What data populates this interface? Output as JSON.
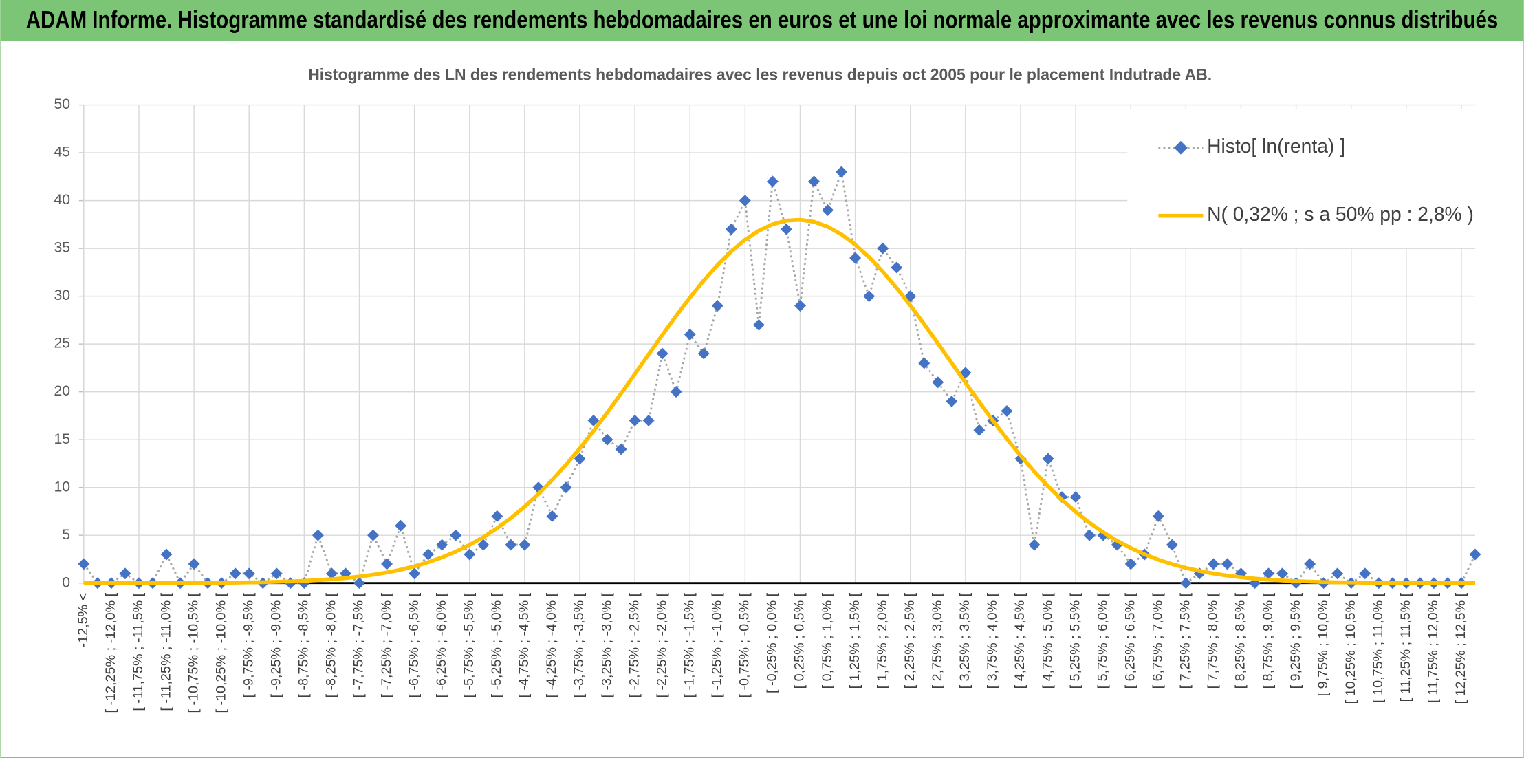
{
  "header": {
    "title": "ADAM Informe. Histogramme standardisé des rendements hebdomadaires en euros et une loi normale approximante avec les revenus connus distribués"
  },
  "chart_data": {
    "type": "line",
    "title": "Histogramme des LN des rendements hebdomadaires avec les revenus depuis oct 2005 pour le placement Indutrade AB.",
    "categories": [
      "-12,5% <",
      null,
      "[ -12,25% ; -12,0% [",
      null,
      "[ -11,75% ; -11,5% [",
      null,
      "[ -11,25% ; -11,0% [",
      null,
      "[ -10,75% ; -10,5% [",
      null,
      "[ -10,25% ; -10,0% [",
      null,
      "[ -9,75% ; -9,5% [",
      null,
      "[ -9,25% ; -9,0% [",
      null,
      "[ -8,75% ; -8,5% [",
      null,
      "[ -8,25% ; -8,0% [",
      null,
      "[ -7,75% ; -7,5% [",
      null,
      "[ -7,25% ; -7,0% [",
      null,
      "[ -6,75% ; -6,5% [",
      null,
      "[ -6,25% ; -6,0% [",
      null,
      "[ -5,75% ; -5,5% [",
      null,
      "[ -5,25% ; -5,0% [",
      null,
      "[ -4,75% ; -4,5% [",
      null,
      "[ -4,25% ; -4,0% [",
      null,
      "[ -3,75% ; -3,5% [",
      null,
      "[ -3,25% ; -3,0% [",
      null,
      "[ -2,75% ; -2,5% [",
      null,
      "[ -2,25% ; -2,0% [",
      null,
      "[ -1,75% ; -1,5% [",
      null,
      "[ -1,25% ; -1,0% [",
      null,
      "[ -0,75% ; -0,5% [",
      null,
      "[ -0,25% ; 0,0% [",
      null,
      "[ 0,25% ; 0,5% [",
      null,
      "[ 0,75% ; 1,0% [",
      null,
      "[ 1,25% ; 1,5% [",
      null,
      "[ 1,75% ; 2,0% [",
      null,
      "[ 2,25% ; 2,5% [",
      null,
      "[ 2,75% ; 3,0% [",
      null,
      "[ 3,25% ; 3,5% [",
      null,
      "[ 3,75% ; 4,0% [",
      null,
      "[ 4,25% ; 4,5% [",
      null,
      "[ 4,75% ; 5,0% [",
      null,
      "[ 5,25% ; 5,5% [",
      null,
      "[ 5,75% ; 6,0% [",
      null,
      "[ 6,25% ; 6,5% [",
      null,
      "[ 6,75% ; 7,0% [",
      null,
      "[ 7,25% ; 7,5% [",
      null,
      "[ 7,75% ; 8,0% [",
      null,
      "[ 8,25% ; 8,5% [",
      null,
      "[ 8,75% ; 9,0% [",
      null,
      "[ 9,25% ; 9,5% [",
      null,
      "[ 9,75% ; 10,0% [",
      null,
      "[ 10,25% ; 10,5% [",
      null,
      "[ 10,75% ; 11,0% [",
      null,
      "[ 11,25% ; 11,5% [",
      null,
      "[ 11,75% ; 12,0% [",
      null,
      "[ 12,25% ; 12,5% [",
      null
    ],
    "series": [
      {
        "name": "Histo[ ln(renta) ]",
        "color": "#4472c4",
        "line_color": "#a6a6a6",
        "marker": "diamond",
        "line_style": "dotted",
        "values": [
          2,
          0,
          0,
          1,
          0,
          0,
          3,
          0,
          2,
          0,
          0,
          1,
          1,
          0,
          1,
          0,
          0,
          5,
          1,
          1,
          0,
          5,
          2,
          6,
          1,
          3,
          4,
          5,
          3,
          4,
          7,
          4,
          4,
          10,
          7,
          10,
          13,
          17,
          15,
          14,
          17,
          17,
          24,
          20,
          26,
          24,
          29,
          37,
          40,
          27,
          42,
          37,
          29,
          42,
          39,
          43,
          34,
          30,
          35,
          33,
          30,
          23,
          21,
          19,
          22,
          16,
          17,
          18,
          13,
          4,
          13,
          9,
          9,
          5,
          5,
          4,
          2,
          3,
          7,
          4,
          0,
          1,
          2,
          2,
          1,
          0,
          1,
          1,
          0,
          2,
          0,
          1,
          0,
          1,
          0,
          0,
          0,
          0,
          0,
          0,
          0,
          3
        ]
      },
      {
        "name": "N( 0,32% ; s a 50% pp : 2,8% )",
        "color": "#ffc000",
        "line_style": "solid",
        "values": [
          0,
          0,
          0,
          0,
          0,
          0,
          0.01,
          0.01,
          0.02,
          0.02,
          0.03,
          0.05,
          0.07,
          0.09,
          0.13,
          0.17,
          0.23,
          0.31,
          0.4,
          0.52,
          0.68,
          0.87,
          1.11,
          1.4,
          1.75,
          2.18,
          2.69,
          3.29,
          3.99,
          4.8,
          5.74,
          6.8,
          7.99,
          9.32,
          10.78,
          12.37,
          14.08,
          15.91,
          17.83,
          19.82,
          21.86,
          23.91,
          25.95,
          27.95,
          29.86,
          31.64,
          33.26,
          34.69,
          35.9,
          36.85,
          37.52,
          37.91,
          37.99,
          37.78,
          37.26,
          36.46,
          35.4,
          34.09,
          32.57,
          30.87,
          29.03,
          27.08,
          25.06,
          23.01,
          20.96,
          18.94,
          16.97,
          15.09,
          13.32,
          11.65,
          10.12,
          8.72,
          7.45,
          6.31,
          5.31,
          4.43,
          3.67,
          3.01,
          2.45,
          1.98,
          1.59,
          1.26,
          1.0,
          0.78,
          0.61,
          0.47,
          0.36,
          0.27,
          0.2,
          0.15,
          0.11,
          0.08,
          0.06,
          0.04,
          0.03,
          0.02,
          0.01,
          0.01,
          0.01,
          0,
          0,
          0
        ]
      }
    ],
    "ylim": [
      0,
      50
    ],
    "yticks": [
      0,
      5,
      10,
      15,
      20,
      25,
      30,
      35,
      40,
      45,
      50
    ],
    "grid": true,
    "legend": "top-right"
  }
}
